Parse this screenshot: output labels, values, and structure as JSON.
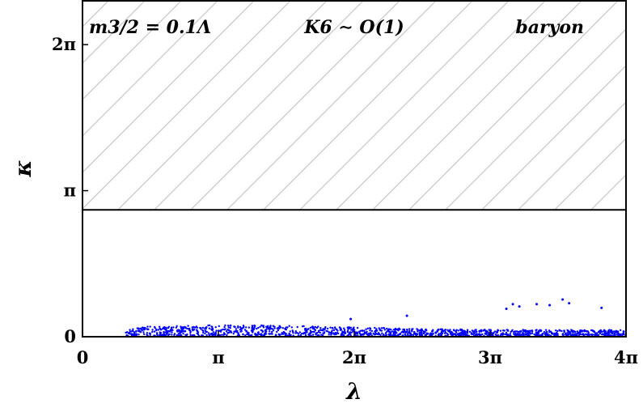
{
  "chart_data": {
    "type": "scatter",
    "title": "",
    "xlabel": "λ",
    "ylabel": "κ",
    "xlim": [
      0,
      12.566
    ],
    "ylim": [
      0,
      7.226
    ],
    "x_ticks": [
      {
        "value": 0,
        "label": "0"
      },
      {
        "value": 3.1416,
        "label": "π"
      },
      {
        "value": 6.2832,
        "label": "2π"
      },
      {
        "value": 9.4248,
        "label": "3π"
      },
      {
        "value": 12.566,
        "label": "4π"
      }
    ],
    "y_ticks": [
      {
        "value": 0,
        "label": "0"
      },
      {
        "value": 3.1416,
        "label": "π"
      },
      {
        "value": 6.2832,
        "label": "2π"
      }
    ],
    "excluded_region": {
      "y_from": 2.73,
      "y_to": 7.226,
      "pattern": "diagonal-hatch"
    },
    "threshold_line": {
      "y": 2.73
    },
    "annotations": [
      {
        "text": "m3/2 = 0.1Λ",
        "position": "top-left"
      },
      {
        "text": "K6 ∼ O(1)",
        "position": "top-center"
      },
      {
        "text": "baryon",
        "position": "top-right"
      }
    ],
    "series": [
      {
        "color": "#0000ff",
        "description_points": {
          "band": {
            "x_from": 1.0,
            "x_to": 12.566,
            "y_typical": [
              0.02,
              0.25
            ],
            "peak_near_x": 3.6
          },
          "outliers": [
            {
              "x": 6.2,
              "y": 0.38
            },
            {
              "x": 7.5,
              "y": 0.45
            },
            {
              "x": 9.8,
              "y": 0.6
            },
            {
              "x": 9.95,
              "y": 0.7
            },
            {
              "x": 10.1,
              "y": 0.65
            },
            {
              "x": 10.5,
              "y": 0.7
            },
            {
              "x": 10.8,
              "y": 0.68
            },
            {
              "x": 11.1,
              "y": 0.8
            },
            {
              "x": 11.25,
              "y": 0.72
            },
            {
              "x": 12.0,
              "y": 0.62
            }
          ]
        }
      }
    ],
    "grid": false,
    "legend": "none"
  }
}
